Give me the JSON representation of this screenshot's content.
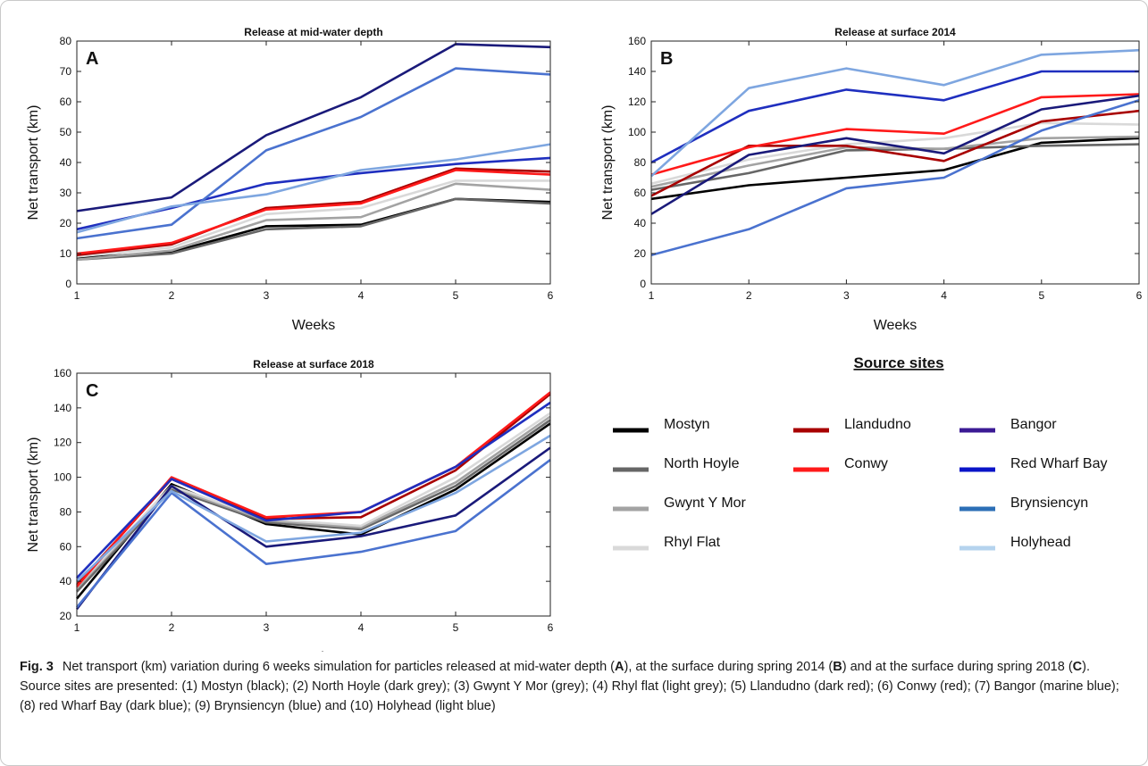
{
  "figure": {
    "label": "Fig. 3",
    "caption_parts": [
      {
        "t": "Net transport (km) variation during 6 weeks simulation for particles released at mid-water depth (",
        "b": false
      },
      {
        "t": "A",
        "b": true
      },
      {
        "t": "), at the surface during spring 2014 (",
        "b": false
      },
      {
        "t": "B",
        "b": true
      },
      {
        "t": ") and at the surface during spring 2018 (",
        "b": false
      },
      {
        "t": "C",
        "b": true
      },
      {
        "t": "). Source sites are presented: (1) Mostyn (black); (2) North Hoyle (dark grey); (3) Gwynt Y Mor (grey); (4) Rhyl flat (light grey); (5) Llandudno (dark red); (6) Conwy (red); (7) Bangor (marine blue); (8) red Wharf Bay (dark blue); (9) Brynsiencyn (blue) and (10) Holyhead (light blue)",
        "b": false
      }
    ]
  },
  "legend": {
    "title": "Source sites",
    "items": [
      {
        "name": "Mostyn",
        "color": "#000000"
      },
      {
        "name": "North Hoyle",
        "color": "#666666"
      },
      {
        "name": "Gwynt Y Mor",
        "color": "#a3a3a3"
      },
      {
        "name": "Rhyl Flat",
        "color": "#d9d9d9"
      },
      {
        "name": "Llandudno",
        "color": "#a80000"
      },
      {
        "name": "Conwy",
        "color": "#ff1a1a"
      },
      {
        "name": "Bangor",
        "color": "#3b1a94"
      },
      {
        "name": "Red Wharf Bay",
        "color": "#0a14c8"
      },
      {
        "name": "Brynsiencyn",
        "color": "#2c6fb6"
      },
      {
        "name": "Holyhead",
        "color": "#b5d3ee"
      }
    ]
  },
  "chart_data": [
    {
      "type": "line",
      "panel": "A",
      "title": "Release at mid-water depth",
      "xlabel": "Weeks",
      "ylabel": "Net transport (km)",
      "x": [
        1,
        2,
        3,
        4,
        5,
        6
      ],
      "xlim": [
        1,
        6
      ],
      "ylim": [
        0,
        80
      ],
      "yticks": [
        0,
        10,
        20,
        30,
        40,
        50,
        60,
        70,
        80
      ],
      "series": [
        {
          "color": "#000000",
          "values": [
            8.5,
            10.5,
            19,
            19.5,
            28,
            27
          ]
        },
        {
          "color": "#666666",
          "values": [
            8,
            10,
            18,
            19,
            28,
            26.5
          ]
        },
        {
          "color": "#a3a3a3",
          "values": [
            8,
            11,
            21,
            22,
            33,
            31
          ]
        },
        {
          "color": "#d9d9d9",
          "values": [
            9,
            12,
            23,
            25,
            34,
            34
          ]
        },
        {
          "color": "#a80000",
          "values": [
            9.5,
            13,
            25,
            27,
            38,
            37
          ]
        },
        {
          "color": "#ff1a1a",
          "values": [
            10,
            13.5,
            24.5,
            26.5,
            37.5,
            36
          ]
        },
        {
          "color": "#1a1a7a",
          "values": [
            24,
            28.5,
            49,
            61.5,
            79,
            78
          ]
        },
        {
          "color": "#1f2fbf",
          "values": [
            18,
            25,
            33,
            36.5,
            39.5,
            41.5
          ]
        },
        {
          "color": "#4a72cf",
          "values": [
            15,
            19.5,
            44,
            55,
            71,
            69
          ]
        },
        {
          "color": "#7ea6e0",
          "values": [
            17,
            25.5,
            29.5,
            37.5,
            41,
            46
          ]
        }
      ]
    },
    {
      "type": "line",
      "panel": "B",
      "title": "Release at surface 2014",
      "xlabel": "Weeks",
      "ylabel": "Net transport (km)",
      "x": [
        1,
        2,
        3,
        4,
        5,
        6
      ],
      "xlim": [
        1,
        6
      ],
      "ylim": [
        0,
        160
      ],
      "yticks": [
        0,
        20,
        40,
        60,
        80,
        100,
        120,
        140,
        160
      ],
      "series": [
        {
          "color": "#000000",
          "values": [
            56,
            65,
            70,
            75,
            93,
            96
          ]
        },
        {
          "color": "#666666",
          "values": [
            62,
            73,
            88,
            89,
            91,
            92
          ]
        },
        {
          "color": "#a3a3a3",
          "values": [
            64,
            78,
            90,
            89,
            96,
            97
          ]
        },
        {
          "color": "#d9d9d9",
          "values": [
            66,
            82,
            92,
            96,
            106,
            105
          ]
        },
        {
          "color": "#a80000",
          "values": [
            58,
            91,
            91,
            81,
            107,
            114
          ]
        },
        {
          "color": "#ff1a1a",
          "values": [
            72,
            90,
            102,
            99,
            123,
            125
          ]
        },
        {
          "color": "#1a1a7a",
          "values": [
            46,
            85,
            96,
            86,
            115,
            124
          ]
        },
        {
          "color": "#1f2fbf",
          "values": [
            80,
            114,
            128,
            121,
            140,
            140
          ]
        },
        {
          "color": "#4a72cf",
          "values": [
            19,
            36,
            63,
            70,
            101,
            121
          ]
        },
        {
          "color": "#7ea6e0",
          "values": [
            71,
            129,
            142,
            131,
            151,
            154
          ]
        }
      ]
    },
    {
      "type": "line",
      "panel": "C",
      "title": "Release at surface 2018",
      "xlabel": "Weeks",
      "ylabel": "Net transport (km)",
      "x": [
        1,
        2,
        3,
        4,
        5,
        6
      ],
      "xlim": [
        1,
        6
      ],
      "ylim": [
        20,
        160
      ],
      "yticks": [
        20,
        40,
        60,
        80,
        100,
        120,
        140,
        160
      ],
      "series": [
        {
          "color": "#000000",
          "values": [
            30,
            96,
            73,
            67,
            93,
            131
          ]
        },
        {
          "color": "#666666",
          "values": [
            34,
            93,
            74,
            70,
            95,
            133
          ]
        },
        {
          "color": "#a3a3a3",
          "values": [
            36,
            94,
            75,
            71,
            97,
            135
          ]
        },
        {
          "color": "#d9d9d9",
          "values": [
            37,
            95,
            76,
            72,
            100,
            137
          ]
        },
        {
          "color": "#a80000",
          "values": [
            38,
            99,
            76,
            77,
            104,
            148
          ]
        },
        {
          "color": "#ff1a1a",
          "values": [
            37,
            100,
            77,
            80,
            106,
            149
          ]
        },
        {
          "color": "#1a1a7a",
          "values": [
            24,
            95,
            60,
            66,
            78,
            117
          ]
        },
        {
          "color": "#1f2fbf",
          "values": [
            42,
            99,
            75,
            80,
            106,
            143
          ]
        },
        {
          "color": "#4a72cf",
          "values": [
            25,
            91,
            50,
            57,
            69,
            110
          ]
        },
        {
          "color": "#7ea6e0",
          "values": [
            40,
            92,
            63,
            68,
            91,
            124
          ]
        }
      ]
    }
  ]
}
